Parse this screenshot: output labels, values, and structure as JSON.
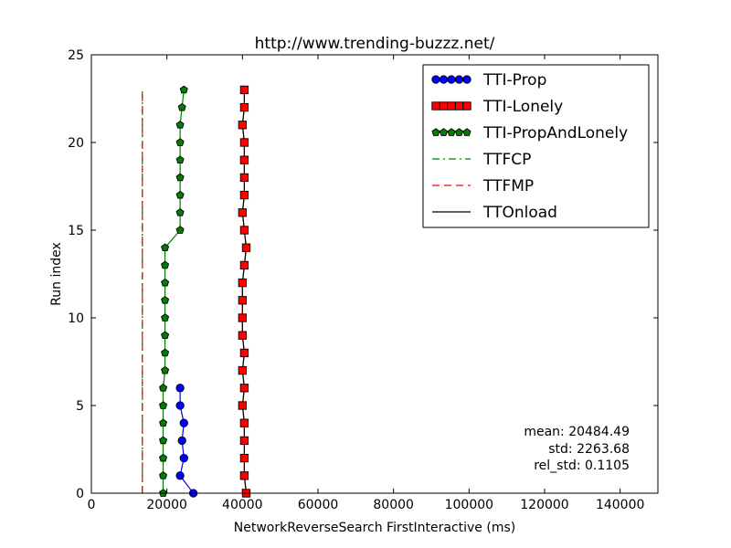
{
  "chart_data": {
    "type": "line",
    "title": "http://www.trending-buzzz.net/",
    "xlabel": "NetworkReverseSearch FirstInteractive (ms)",
    "ylabel": "Run index",
    "xlim": [
      0,
      150000
    ],
    "ylim": [
      0,
      25
    ],
    "xticks": [
      0,
      20000,
      40000,
      60000,
      80000,
      100000,
      120000,
      140000
    ],
    "yticks": [
      0,
      5,
      10,
      15,
      20,
      25
    ],
    "grid": false,
    "legend_position": "top-right",
    "series": [
      {
        "name": "TTI-Prop",
        "color": "#0000ff",
        "marker": "circle",
        "x": [
          27000,
          23500,
          24500,
          24000,
          24500,
          23500,
          23500
        ],
        "y": [
          0,
          1,
          2,
          3,
          4,
          5,
          6
        ]
      },
      {
        "name": "TTI-Lonely",
        "color": "#ff0000",
        "marker": "square",
        "x": [
          41000,
          40500,
          40500,
          40500,
          40500,
          40000,
          40500,
          40000,
          40500,
          40000,
          40000,
          40000,
          40000,
          40500,
          41000,
          40500,
          40000,
          40500,
          40500,
          40500,
          40500,
          40000,
          40500,
          40500
        ],
        "y": [
          0,
          1,
          2,
          3,
          4,
          5,
          6,
          7,
          8,
          9,
          10,
          11,
          12,
          13,
          14,
          15,
          16,
          17,
          18,
          19,
          20,
          21,
          22,
          23
        ]
      },
      {
        "name": "TTI-PropAndLonely",
        "color": "#007f00",
        "marker": "pentagon",
        "x": [
          19000,
          19000,
          19000,
          19000,
          19000,
          19000,
          19000,
          19500,
          19500,
          19500,
          19500,
          19500,
          19500,
          19500,
          19500,
          23500,
          23500,
          23500,
          23500,
          23500,
          23500,
          23500,
          24000,
          24500
        ],
        "y": [
          0,
          1,
          2,
          3,
          4,
          5,
          6,
          7,
          8,
          9,
          10,
          11,
          12,
          13,
          14,
          15,
          16,
          17,
          18,
          19,
          20,
          21,
          22,
          23
        ]
      },
      {
        "name": "TTFCP",
        "color": "#007f00",
        "linestyle": "dashdot",
        "x": [
          13500,
          13500
        ],
        "y": [
          0,
          23
        ]
      },
      {
        "name": "TTFMP",
        "color": "#ff0000",
        "linestyle": "dashed",
        "x": [
          13500,
          13500
        ],
        "y": [
          0,
          23
        ]
      },
      {
        "name": "TTOnload",
        "color": "#000000",
        "linestyle": "solid",
        "x": [
          41000,
          40500,
          40500,
          40500,
          40500,
          40000,
          40500,
          40000,
          40500,
          40000,
          40000,
          40000,
          40000,
          40500,
          41000,
          40500,
          40000,
          40500,
          40500,
          40500,
          40500,
          40000,
          40500,
          40500
        ],
        "y": [
          0,
          1,
          2,
          3,
          4,
          5,
          6,
          7,
          8,
          9,
          10,
          11,
          12,
          13,
          14,
          15,
          16,
          17,
          18,
          19,
          20,
          21,
          22,
          23
        ]
      }
    ],
    "annotations": [
      "mean: 20484.49",
      "std: 2263.68",
      "rel_std: 0.1105"
    ]
  }
}
